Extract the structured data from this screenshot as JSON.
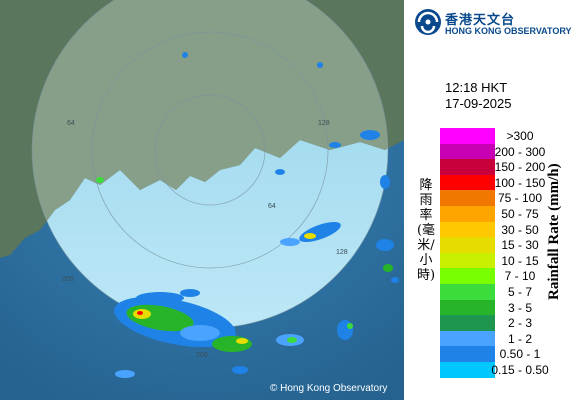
{
  "map": {
    "range_labels": [
      "64",
      "128",
      "128",
      "200",
      "200",
      "64"
    ],
    "copyright": "© Hong Kong Observatory",
    "colors": {
      "sea": "#2f78ad",
      "land": "#55735a",
      "radar_disc": "#bfe8f8"
    }
  },
  "header": {
    "logo_zh": "香港天文台",
    "logo_en": "HONG KONG OBSERVATORY",
    "logo_icon": "hko-logo-icon"
  },
  "timestamp": {
    "time": "12:18 HKT",
    "date": "17-09-2025"
  },
  "legend": {
    "title_en": "Rainfall Rate (mm/h)",
    "title_zh": "降雨率(毫米/小時)",
    "items": [
      {
        "label": ">300",
        "color": "#ff00ff"
      },
      {
        "label": "200 - 300",
        "color": "#c800b4"
      },
      {
        "label": "150 - 200",
        "color": "#c8003c"
      },
      {
        "label": "100 - 150",
        "color": "#ff0000"
      },
      {
        "label": "75 - 100",
        "color": "#f07800"
      },
      {
        "label": "50 - 75",
        "color": "#ffa500"
      },
      {
        "label": "30 - 50",
        "color": "#ffc800"
      },
      {
        "label": "15 - 30",
        "color": "#e6dc00"
      },
      {
        "label": "10 - 15",
        "color": "#c8f000"
      },
      {
        "label": "7 - 10",
        "color": "#78ff00"
      },
      {
        "label": "5 - 7",
        "color": "#3cdc3c"
      },
      {
        "label": "3 - 5",
        "color": "#28b428"
      },
      {
        "label": "2 - 3",
        "color": "#1e9650"
      },
      {
        "label": "1 - 2",
        "color": "#4aa3ff"
      },
      {
        "label": "0.50 - 1",
        "color": "#1e82e6"
      },
      {
        "label": "0.15 - 0.50",
        "color": "#00c8ff"
      }
    ]
  }
}
